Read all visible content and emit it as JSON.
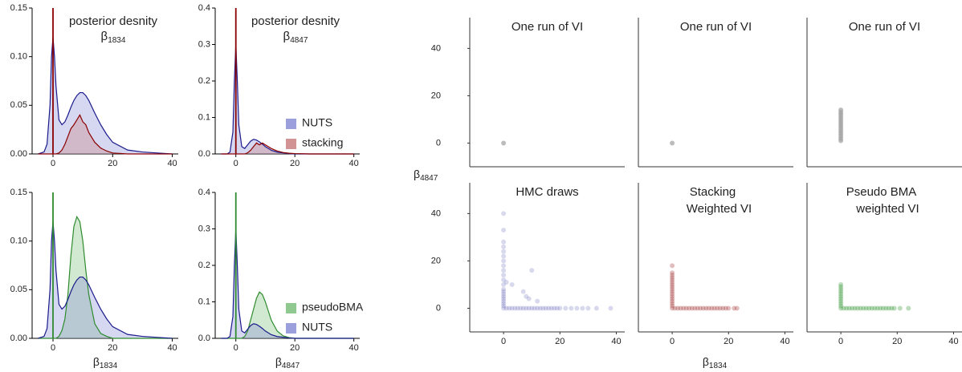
{
  "chart_data": [
    {
      "type": "density",
      "title": "posterior desnity",
      "subtitle": {
        "base": "β",
        "sub": "1834"
      },
      "x": [
        -5,
        -3,
        -2,
        -1,
        -0.5,
        0,
        0.5,
        1,
        2,
        3,
        4,
        5,
        6,
        7,
        8,
        9,
        10,
        11,
        12,
        14,
        16,
        18,
        20,
        25,
        30,
        35,
        40
      ],
      "xlim": [
        -7,
        42
      ],
      "xticks": [
        0,
        20,
        40
      ],
      "ylim": [
        0,
        0.15
      ],
      "yticks": [
        {
          "value": 0,
          "label": "0.00"
        },
        {
          "value": 0.05,
          "label": "0.05"
        },
        {
          "value": 0.1,
          "label": "0.10"
        },
        {
          "value": 0.15,
          "label": "0.15"
        }
      ],
      "spike": {
        "x": 0,
        "color": "#8b0000"
      },
      "series": [
        {
          "color": "#1a1a8c",
          "fill": "#8a8ed6",
          "values": [
            0,
            0.002,
            0.01,
            0.05,
            0.1,
            0.12,
            0.1,
            0.07,
            0.035,
            0.03,
            0.033,
            0.04,
            0.048,
            0.055,
            0.06,
            0.063,
            0.063,
            0.06,
            0.055,
            0.042,
            0.03,
            0.02,
            0.012,
            0.004,
            0.002,
            0.001,
            0
          ]
        },
        {
          "color": "#8b0000",
          "fill": "#c98080",
          "values": [
            0,
            0,
            0,
            0,
            0,
            0,
            0,
            0,
            0.001,
            0.004,
            0.01,
            0.018,
            0.026,
            0.03,
            0.035,
            0.04,
            0.033,
            0.03,
            0.022,
            0.012,
            0.006,
            0.003,
            0.001,
            0,
            0,
            0,
            0
          ]
        }
      ]
    },
    {
      "type": "density",
      "title": "posterior desnity",
      "subtitle": {
        "base": "β",
        "sub": "4847"
      },
      "x": [
        -5,
        -3,
        -2,
        -1,
        -0.5,
        0,
        0.5,
        1,
        2,
        3,
        4,
        5,
        6,
        7,
        8,
        9,
        10,
        11,
        12,
        14,
        16,
        18,
        20,
        25,
        30,
        35,
        40
      ],
      "xlim": [
        -7,
        42
      ],
      "xticks": [
        0,
        20,
        40
      ],
      "ylim": [
        0,
        0.4
      ],
      "yticks": [
        {
          "value": 0,
          "label": "0.0"
        },
        0.1,
        0.2,
        0.3,
        0.4
      ],
      "spike": {
        "x": 0,
        "color": "#8b0000"
      },
      "legend": "lower right",
      "series": [
        {
          "name": "NUTS",
          "color": "#1a1a8c",
          "fill": "#8a8ed6",
          "values": [
            0,
            0,
            0.005,
            0.06,
            0.2,
            0.3,
            0.2,
            0.08,
            0.02,
            0.015,
            0.025,
            0.035,
            0.04,
            0.038,
            0.033,
            0.027,
            0.02,
            0.015,
            0.01,
            0.005,
            0.003,
            0.001,
            0,
            0,
            0,
            0,
            0
          ]
        },
        {
          "name": "stacking",
          "color": "#8b0000",
          "fill": "#c98080",
          "values": [
            0,
            0,
            0,
            0,
            0,
            0,
            0,
            0,
            0,
            0,
            0.003,
            0.01,
            0.02,
            0.03,
            0.025,
            0.03,
            0.025,
            0.02,
            0.015,
            0.008,
            0.004,
            0.002,
            0.001,
            0,
            0,
            0,
            0
          ]
        }
      ]
    },
    {
      "type": "density",
      "xlabel": {
        "base": "β",
        "sub": "1834"
      },
      "x": [
        -5,
        -3,
        -2,
        -1,
        -0.5,
        0,
        0.5,
        1,
        2,
        3,
        4,
        5,
        6,
        7,
        8,
        9,
        10,
        11,
        12,
        14,
        16,
        18,
        20,
        25,
        30,
        35,
        40
      ],
      "xlim": [
        -7,
        42
      ],
      "xticks": [
        0,
        20,
        40
      ],
      "ylim": [
        0,
        0.15
      ],
      "yticks": [
        {
          "value": 0,
          "label": "0.00"
        },
        {
          "value": 0.05,
          "label": "0.05"
        },
        {
          "value": 0.1,
          "label": "0.10"
        },
        {
          "value": 0.15,
          "label": "0.15"
        }
      ],
      "spike": {
        "x": 0,
        "color": "#2e8b2e"
      },
      "series": [
        {
          "color": "#2e8b2e",
          "fill": "#7cc07c",
          "values": [
            0,
            0,
            0,
            0,
            0,
            0,
            0,
            0,
            0.002,
            0.008,
            0.02,
            0.045,
            0.085,
            0.115,
            0.125,
            0.12,
            0.1,
            0.07,
            0.045,
            0.015,
            0.005,
            0.002,
            0,
            0,
            0,
            0,
            0
          ]
        },
        {
          "color": "#1a1a8c",
          "fill": "#8a8ed6",
          "values": [
            0,
            0.002,
            0.01,
            0.05,
            0.1,
            0.12,
            0.1,
            0.07,
            0.035,
            0.03,
            0.033,
            0.04,
            0.048,
            0.055,
            0.06,
            0.063,
            0.063,
            0.06,
            0.055,
            0.042,
            0.03,
            0.02,
            0.012,
            0.004,
            0.002,
            0.001,
            0
          ]
        }
      ]
    },
    {
      "type": "density",
      "xlabel": {
        "base": "β",
        "sub": "4847"
      },
      "x": [
        -5,
        -3,
        -2,
        -1,
        -0.5,
        0,
        0.5,
        1,
        2,
        3,
        4,
        5,
        6,
        7,
        8,
        9,
        10,
        11,
        12,
        14,
        16,
        18,
        20,
        25,
        30,
        35,
        40
      ],
      "xlim": [
        -7,
        42
      ],
      "xticks": [
        0,
        20,
        40
      ],
      "ylim": [
        0,
        0.4
      ],
      "yticks": [
        {
          "value": 0,
          "label": "0.0"
        },
        0.1,
        0.2,
        0.3,
        0.4
      ],
      "spike": {
        "x": 0,
        "color": "#2e8b2e"
      },
      "legend": "lower right",
      "series": [
        {
          "name": "pseudoBMA",
          "color": "#2e8b2e",
          "fill": "#7cc07c",
          "values": [
            0,
            0,
            0,
            0,
            0,
            0,
            0,
            0,
            0,
            0.005,
            0.02,
            0.05,
            0.08,
            0.11,
            0.127,
            0.12,
            0.1,
            0.075,
            0.05,
            0.02,
            0.007,
            0.002,
            0,
            0,
            0,
            0,
            0
          ]
        },
        {
          "name": "NUTS",
          "color": "#1a1a8c",
          "fill": "#8a8ed6",
          "values": [
            0,
            0,
            0.005,
            0.06,
            0.2,
            0.3,
            0.2,
            0.08,
            0.02,
            0.015,
            0.025,
            0.035,
            0.04,
            0.038,
            0.033,
            0.027,
            0.02,
            0.015,
            0.01,
            0.005,
            0.003,
            0.001,
            0,
            0,
            0,
            0,
            0
          ]
        }
      ]
    },
    {
      "type": "scatter",
      "title": [
        "One run of VI"
      ],
      "xlim": [
        -12,
        43
      ],
      "ylim": [
        -10,
        53
      ],
      "yticks": [
        0,
        20,
        40
      ],
      "color": "#a0a0a0",
      "opacity": 0.7,
      "x": [
        0
      ],
      "y": [
        0
      ]
    },
    {
      "type": "scatter",
      "title": [
        "One run of VI"
      ],
      "xlim": [
        -12,
        43
      ],
      "ylim": [
        -10,
        53
      ],
      "color": "#a0a0a0",
      "opacity": 0.7,
      "x": [
        0
      ],
      "y": [
        0
      ]
    },
    {
      "type": "scatter",
      "title": [
        "One run of VI"
      ],
      "xlim": [
        -12,
        43
      ],
      "ylim": [
        -10,
        53
      ],
      "color": "#a0a0a0",
      "opacity": 0.7,
      "x": [
        0,
        0,
        0,
        0,
        0,
        0,
        0,
        0,
        0,
        0,
        0,
        0,
        0,
        0
      ],
      "y": [
        1,
        2,
        3,
        4,
        5,
        6,
        7,
        8,
        9,
        10,
        11,
        12,
        13,
        14
      ]
    },
    {
      "type": "scatter",
      "title": [
        "HMC draws"
      ],
      "xlim": [
        -12,
        43
      ],
      "ylim": [
        -10,
        53
      ],
      "xticks": [
        0,
        20,
        40
      ],
      "yticks": [
        0,
        20,
        40
      ],
      "color": "#00008b",
      "opacity": 0.15,
      "x": [
        0,
        0,
        0,
        0,
        0,
        0,
        0,
        0,
        0,
        0,
        0,
        0,
        0,
        0,
        0,
        0,
        0,
        0,
        0,
        0,
        0,
        1,
        2,
        3,
        4,
        5,
        6,
        7,
        8,
        9,
        10,
        11,
        12,
        13,
        14,
        15,
        16,
        17,
        18,
        19,
        20,
        22,
        24,
        26,
        28,
        30,
        33,
        38,
        8,
        10,
        7,
        3,
        1,
        12,
        9
      ],
      "y": [
        0,
        1,
        2,
        3,
        4,
        5,
        6,
        7,
        8,
        10,
        12,
        14,
        16,
        18,
        20,
        22,
        24,
        26,
        28,
        33,
        40,
        0,
        0,
        0,
        0,
        0,
        0,
        0,
        0,
        0,
        0,
        0,
        0,
        0,
        0,
        0,
        0,
        0,
        0,
        0,
        0,
        0,
        0,
        0,
        0,
        0,
        0,
        0,
        5,
        16,
        7,
        10,
        11,
        3,
        4
      ]
    },
    {
      "type": "scatter",
      "title": [
        "Stacking",
        "Weighted VI"
      ],
      "xlim": [
        -12,
        43
      ],
      "ylim": [
        -10,
        53
      ],
      "xticks": [
        0,
        20,
        40
      ],
      "color": "#8b0000",
      "opacity": 0.25,
      "x": [
        0,
        0,
        0,
        0,
        0,
        0,
        0,
        0,
        0,
        0,
        0,
        0,
        0,
        0,
        0,
        0,
        0,
        1,
        2,
        3,
        4,
        5,
        6,
        7,
        8,
        9,
        10,
        11,
        12,
        13,
        14,
        15,
        16,
        17,
        18,
        19,
        20,
        22,
        23
      ],
      "y": [
        0,
        1,
        2,
        3,
        4,
        5,
        6,
        7,
        8,
        9,
        10,
        11,
        12,
        13,
        14,
        15,
        18,
        0,
        0,
        0,
        0,
        0,
        0,
        0,
        0,
        0,
        0,
        0,
        0,
        0,
        0,
        0,
        0,
        0,
        0,
        0,
        0,
        0,
        0
      ]
    },
    {
      "type": "scatter",
      "title": [
        "Pseudo BMA",
        "weighted VI"
      ],
      "xlim": [
        -12,
        43
      ],
      "ylim": [
        -10,
        53
      ],
      "xticks": [
        0,
        20,
        40
      ],
      "color": "#228b22",
      "opacity": 0.3,
      "x": [
        0,
        0,
        0,
        0,
        0,
        0,
        0,
        0,
        0,
        0,
        0,
        1,
        2,
        3,
        4,
        5,
        6,
        7,
        8,
        9,
        10,
        11,
        12,
        13,
        14,
        15,
        16,
        17,
        18,
        19,
        21,
        24
      ],
      "y": [
        0,
        1,
        2,
        3,
        4,
        5,
        6,
        7,
        8,
        9,
        10,
        0,
        0,
        0,
        0,
        0,
        0,
        0,
        0,
        0,
        0,
        0,
        0,
        0,
        0,
        0,
        0,
        0,
        0,
        0,
        0,
        0
      ]
    }
  ],
  "scatter_axes": {
    "xlabel": {
      "base": "β",
      "sub": "1834"
    },
    "ylabel": {
      "base": "β",
      "sub": "4847"
    }
  }
}
